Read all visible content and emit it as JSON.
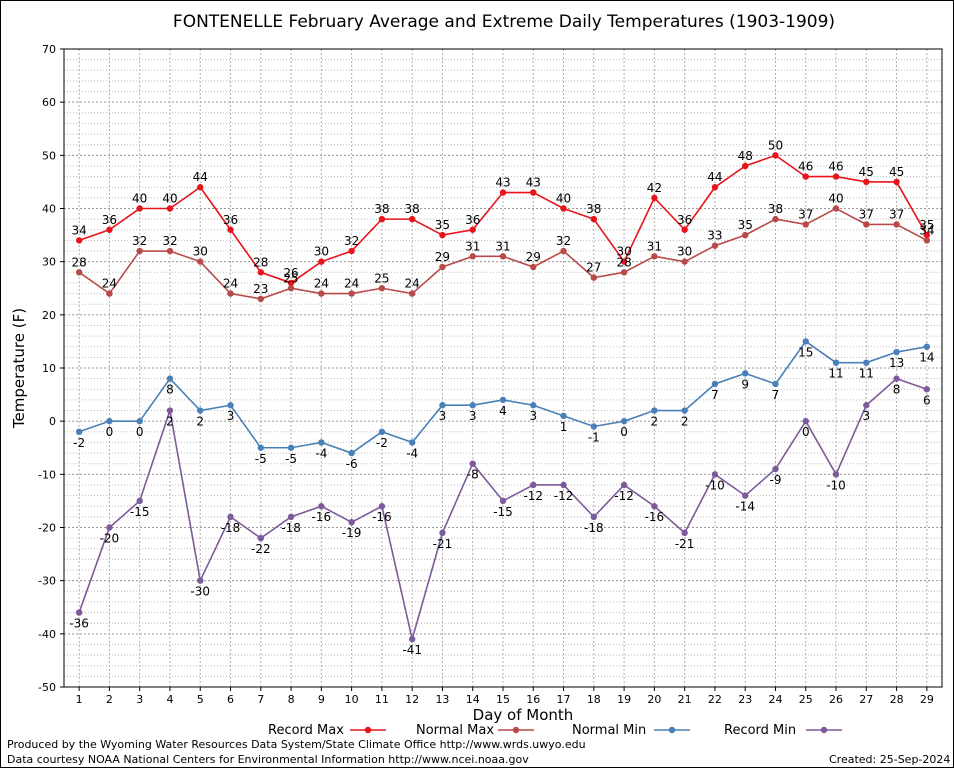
{
  "chart_data": {
    "type": "line",
    "title": "FONTENELLE February Average and Extreme Daily Temperatures (1903-1909)",
    "xlabel": "Day of Month",
    "ylabel": "Temperature (F)",
    "ylim": [
      -50,
      70
    ],
    "ytick_step": 10,
    "grid": true,
    "legend_position": "bottom",
    "x": [
      1,
      2,
      3,
      4,
      5,
      6,
      7,
      8,
      9,
      10,
      11,
      12,
      13,
      14,
      15,
      16,
      17,
      18,
      19,
      20,
      21,
      22,
      23,
      24,
      25,
      26,
      27,
      28,
      29
    ],
    "series": [
      {
        "name": "Record Max",
        "color": "#e8141c",
        "label_pos": "above",
        "values": [
          34,
          36,
          40,
          40,
          44,
          36,
          28,
          26,
          30,
          32,
          38,
          38,
          35,
          36,
          43,
          43,
          40,
          38,
          30,
          42,
          36,
          44,
          48,
          50,
          46,
          46,
          45,
          45,
          35
        ]
      },
      {
        "name": "Normal Max",
        "color": "#b84a4a",
        "label_pos": "above",
        "values": [
          28,
          24,
          32,
          32,
          30,
          24,
          23,
          25,
          24,
          24,
          25,
          24,
          29,
          31,
          31,
          29,
          32,
          27,
          28,
          31,
          30,
          33,
          35,
          38,
          37,
          40,
          37,
          37,
          34
        ]
      },
      {
        "name": "Normal Min",
        "color": "#4a80b8",
        "label_pos": "below",
        "values": [
          -2,
          0,
          0,
          8,
          2,
          3,
          -5,
          -5,
          -4,
          -6,
          -2,
          -4,
          3,
          3,
          4,
          3,
          1,
          -1,
          0,
          2,
          2,
          7,
          9,
          7,
          15,
          11,
          11,
          13,
          14
        ]
      },
      {
        "name": "Record Min",
        "color": "#7d5a9a",
        "label_pos": "below",
        "values": [
          -36,
          -20,
          -15,
          2,
          -30,
          -18,
          -22,
          -18,
          -16,
          -19,
          -16,
          -41,
          -21,
          -8,
          -15,
          -12,
          -12,
          -18,
          -12,
          -16,
          -21,
          -10,
          -14,
          -9,
          0,
          -10,
          3,
          8,
          6
        ]
      }
    ]
  },
  "footer": {
    "produced_by": "Produced by the Wyoming Water Resources Data System/State Climate Office http://www.wrds.uwyo.edu",
    "courtesy": "Data courtesy NOAA National Centers for Environmental Information http://www.ncei.noaa.gov",
    "created": "Created:  25-Sep-2024"
  }
}
